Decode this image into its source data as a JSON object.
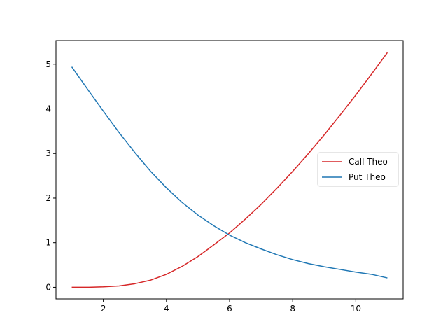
{
  "chart_data": {
    "type": "line",
    "title": "",
    "xlabel": "",
    "ylabel": "",
    "xlim": [
      0.5,
      11.5
    ],
    "ylim": [
      -0.26,
      5.53
    ],
    "x_ticks": [
      2,
      4,
      6,
      8,
      10
    ],
    "y_ticks": [
      0,
      1,
      2,
      3,
      4,
      5
    ],
    "grid": false,
    "legend_position": "right",
    "x": [
      1,
      1.5,
      2,
      2.5,
      3,
      3.5,
      4,
      4.5,
      5,
      5.5,
      6,
      6.5,
      7,
      7.5,
      8,
      8.5,
      9,
      9.5,
      10,
      10.5,
      11
    ],
    "series": [
      {
        "name": "Call Theo",
        "color": "#d62728",
        "values": [
          0.0,
          0.0,
          0.01,
          0.03,
          0.08,
          0.16,
          0.29,
          0.47,
          0.69,
          0.95,
          1.22,
          1.53,
          1.86,
          2.22,
          2.6,
          3.0,
          3.42,
          3.86,
          4.31,
          4.78,
          5.26
        ]
      },
      {
        "name": "Put Theo",
        "color": "#1f77b4",
        "values": [
          4.94,
          4.44,
          3.95,
          3.47,
          3.02,
          2.6,
          2.23,
          1.9,
          1.62,
          1.38,
          1.17,
          1.0,
          0.86,
          0.73,
          0.62,
          0.53,
          0.46,
          0.4,
          0.34,
          0.29,
          0.21
        ]
      }
    ]
  }
}
